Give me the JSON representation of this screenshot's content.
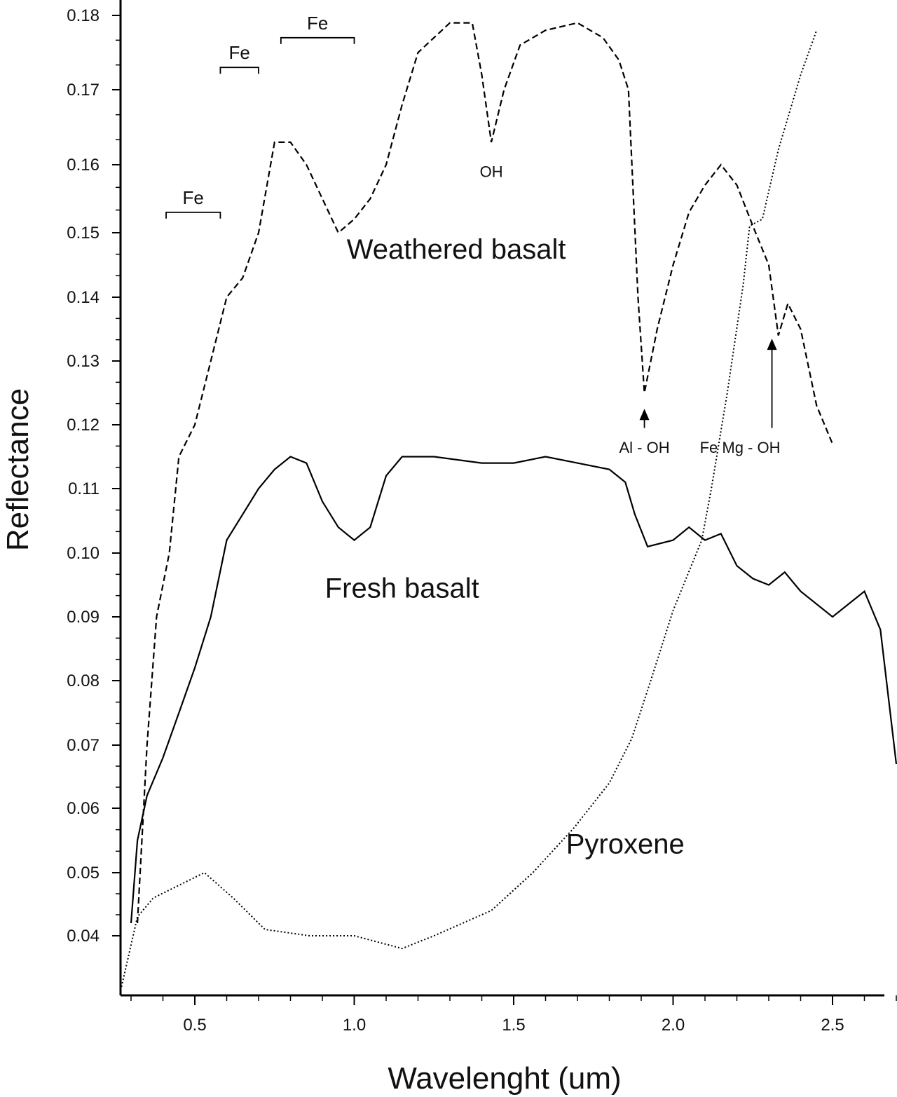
{
  "chart_data": {
    "type": "line",
    "title": "",
    "xlabel": "Wavelenght (um)",
    "ylabel": "Reflectance",
    "xlim": [
      0.27,
      2.73
    ],
    "ylim": [
      0.03,
      0.18
    ],
    "xticks": [
      "0.5",
      "1.0",
      "1.5",
      "2.0",
      "2.5"
    ],
    "xtick_values": [
      0.5,
      1.0,
      1.5,
      2.0,
      2.5
    ],
    "yticks": [
      "0.18",
      "0.17",
      "0.16",
      "0.15",
      "0.14",
      "0.13",
      "0.12",
      "0.11",
      "0.10",
      "0.09",
      "0.08",
      "0.07",
      "0.06",
      "0.05",
      "0.04"
    ],
    "ytick_values": [
      0.18,
      0.17,
      0.16,
      0.15,
      0.14,
      0.13,
      0.12,
      0.11,
      0.1,
      0.09,
      0.08,
      0.07,
      0.06,
      0.05,
      0.04
    ],
    "grid": false,
    "series": [
      {
        "name": "Weathered basalt",
        "style": "dashed",
        "x": [
          0.32,
          0.35,
          0.38,
          0.42,
          0.45,
          0.5,
          0.55,
          0.6,
          0.65,
          0.7,
          0.75,
          0.8,
          0.85,
          0.9,
          0.95,
          1.0,
          1.05,
          1.1,
          1.15,
          1.2,
          1.3,
          1.37,
          1.4,
          1.43,
          1.47,
          1.52,
          1.6,
          1.7,
          1.78,
          1.83,
          1.86,
          1.89,
          1.91,
          1.95,
          2.0,
          2.05,
          2.1,
          2.15,
          2.2,
          2.25,
          2.3,
          2.33,
          2.36,
          2.4,
          2.45,
          2.5
        ],
        "y": [
          0.042,
          0.07,
          0.09,
          0.1,
          0.115,
          0.12,
          0.13,
          0.14,
          0.143,
          0.15,
          0.163,
          0.163,
          0.16,
          0.155,
          0.15,
          0.152,
          0.155,
          0.16,
          0.168,
          0.175,
          0.179,
          0.179,
          0.172,
          0.163,
          0.17,
          0.176,
          0.178,
          0.179,
          0.177,
          0.174,
          0.17,
          0.14,
          0.125,
          0.135,
          0.145,
          0.153,
          0.157,
          0.16,
          0.157,
          0.151,
          0.145,
          0.134,
          0.139,
          0.135,
          0.123,
          0.117
        ]
      },
      {
        "name": "Fresh basalt",
        "style": "solid",
        "x": [
          0.3,
          0.32,
          0.35,
          0.4,
          0.45,
          0.5,
          0.55,
          0.6,
          0.65,
          0.7,
          0.75,
          0.8,
          0.85,
          0.9,
          0.95,
          1.0,
          1.05,
          1.1,
          1.15,
          1.25,
          1.4,
          1.5,
          1.6,
          1.7,
          1.8,
          1.85,
          1.88,
          1.92,
          2.0,
          2.05,
          2.1,
          2.15,
          2.2,
          2.25,
          2.3,
          2.35,
          2.4,
          2.5,
          2.6,
          2.65,
          2.7
        ],
        "y": [
          0.042,
          0.055,
          0.062,
          0.068,
          0.075,
          0.082,
          0.09,
          0.102,
          0.106,
          0.11,
          0.113,
          0.115,
          0.114,
          0.108,
          0.104,
          0.102,
          0.104,
          0.112,
          0.115,
          0.115,
          0.114,
          0.114,
          0.115,
          0.114,
          0.113,
          0.111,
          0.106,
          0.101,
          0.102,
          0.104,
          0.102,
          0.103,
          0.098,
          0.096,
          0.095,
          0.097,
          0.094,
          0.09,
          0.094,
          0.088,
          0.067
        ]
      },
      {
        "name": "Pyroxene",
        "style": "dotted",
        "x": [
          0.27,
          0.32,
          0.37,
          0.45,
          0.53,
          0.62,
          0.72,
          0.86,
          1.0,
          1.15,
          1.25,
          1.43,
          1.56,
          1.69,
          1.8,
          1.87,
          1.93,
          2.0,
          2.09,
          2.12,
          2.17,
          2.22,
          2.24,
          2.28,
          2.33,
          2.4,
          2.45
        ],
        "y": [
          0.032,
          0.043,
          0.046,
          0.048,
          0.05,
          0.046,
          0.041,
          0.04,
          0.04,
          0.038,
          0.04,
          0.044,
          0.05,
          0.057,
          0.064,
          0.071,
          0.08,
          0.091,
          0.102,
          0.11,
          0.125,
          0.142,
          0.151,
          0.152,
          0.162,
          0.172,
          0.178
        ]
      }
    ],
    "curve_labels": [
      {
        "text": "Weathered basalt",
        "x": 1.32,
        "y": 0.146
      },
      {
        "text": "Fresh basalt",
        "x": 1.15,
        "y": 0.093
      },
      {
        "text": "Pyroxene",
        "x": 1.85,
        "y": 0.053
      }
    ],
    "brackets": [
      {
        "text": "Fe",
        "x0": 0.41,
        "x1": 0.58,
        "y": 0.153
      },
      {
        "text": "Fe",
        "x0": 0.58,
        "x1": 0.7,
        "y": 0.173
      },
      {
        "text": "Fe",
        "x0": 0.77,
        "x1": 1.0,
        "y": 0.177
      }
    ],
    "annotations": [
      {
        "text": "OH",
        "x": 1.43,
        "y": 0.159
      },
      {
        "text": "Al - OH",
        "x": 1.91,
        "y": 0.1165,
        "arrow_from": 0.1195,
        "arrow_to": 0.1225
      },
      {
        "text": "Fe Mg - OH",
        "x": 2.21,
        "y": 0.1165,
        "arrow_x": 2.31,
        "arrow_from": 0.1195,
        "arrow_to": 0.1335
      }
    ]
  }
}
